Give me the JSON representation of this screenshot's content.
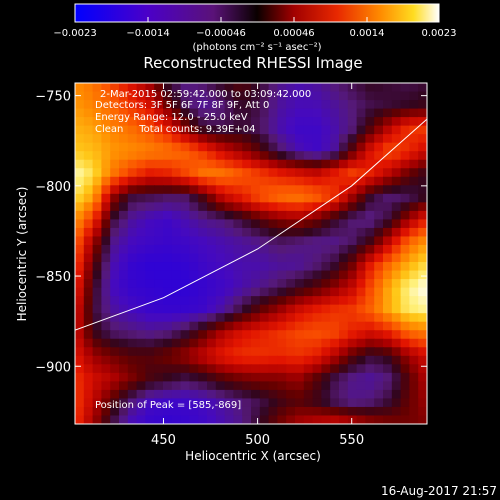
{
  "chart_data": {
    "type": "heatmap",
    "title": "Reconstructed RHESSI Image",
    "xlabel": "Heliocentric X (arcsec)",
    "ylabel": "Heliocentric Y (arcsec)",
    "xlim": [
      403,
      590
    ],
    "ylim": [
      -932,
      -743
    ],
    "x_ticks": [
      450,
      500,
      550
    ],
    "y_ticks": [
      -750,
      -800,
      -850,
      -900
    ],
    "colorbar": {
      "ticks": [
        "-0.0023",
        "-0.0014",
        "-0.00046",
        "0.00046",
        "0.0014",
        "0.0023"
      ],
      "units_label": "(photons cm⁻² s⁻¹ asec⁻²)",
      "range": [
        -0.0023,
        0.0023
      ]
    },
    "annotations": [
      "2-Mar-2015 02:59:42.000 to 03:09:42.000",
      "Detectors: 3F 5F 6F 7F 8F 9F, Att 0",
      "Energy Range: 12.0 - 25.0 keV",
      "Clean     Total counts: 9.39E+04"
    ],
    "peak_label": "Position of Peak = [585,-869]",
    "limb": [
      [
        403,
        -880
      ],
      [
        450,
        -862
      ],
      [
        500,
        -835
      ],
      [
        550,
        -800
      ],
      [
        590,
        -763
      ]
    ],
    "intensity_grid": {
      "x_range": [
        403,
        590
      ],
      "y_range": [
        -743,
        -932
      ],
      "rows": [
        [
          0.78,
          0.73,
          0.63,
          0.52,
          0.4,
          0.22,
          0.14,
          0.18,
          0.25,
          0.3,
          0.22,
          0.14,
          0.1,
          0.12,
          0.16,
          0.2,
          0.24,
          0.22,
          0.2,
          0.22
        ],
        [
          0.8,
          0.76,
          0.7,
          0.6,
          0.52,
          0.34,
          0.18,
          0.12,
          0.16,
          0.24,
          0.2,
          0.12,
          0.09,
          0.09,
          0.12,
          0.16,
          0.2,
          0.22,
          0.24,
          0.26
        ],
        [
          0.84,
          0.82,
          0.76,
          0.72,
          0.66,
          0.55,
          0.36,
          0.22,
          0.2,
          0.22,
          0.18,
          0.1,
          0.06,
          0.06,
          0.1,
          0.16,
          0.3,
          0.46,
          0.6,
          0.62
        ],
        [
          0.88,
          0.86,
          0.8,
          0.78,
          0.76,
          0.74,
          0.7,
          0.6,
          0.48,
          0.4,
          0.3,
          0.18,
          0.1,
          0.06,
          0.12,
          0.32,
          0.54,
          0.66,
          0.58,
          0.48
        ],
        [
          0.98,
          0.92,
          0.74,
          0.62,
          0.54,
          0.56,
          0.64,
          0.74,
          0.74,
          0.68,
          0.62,
          0.56,
          0.52,
          0.48,
          0.56,
          0.64,
          0.56,
          0.44,
          0.32,
          0.24
        ],
        [
          0.92,
          0.82,
          0.4,
          0.22,
          0.2,
          0.18,
          0.18,
          0.3,
          0.48,
          0.56,
          0.66,
          0.72,
          0.74,
          0.7,
          0.6,
          0.4,
          0.22,
          0.16,
          0.18,
          0.24
        ],
        [
          0.8,
          0.6,
          0.22,
          0.12,
          0.08,
          0.06,
          0.1,
          0.14,
          0.16,
          0.22,
          0.3,
          0.36,
          0.4,
          0.34,
          0.24,
          0.16,
          0.14,
          0.22,
          0.4,
          0.56
        ],
        [
          0.7,
          0.4,
          0.14,
          0.08,
          0.06,
          0.05,
          0.06,
          0.08,
          0.1,
          0.12,
          0.14,
          0.18,
          0.16,
          0.14,
          0.14,
          0.18,
          0.28,
          0.48,
          0.7,
          0.8
        ],
        [
          0.64,
          0.3,
          0.1,
          0.04,
          0.02,
          0.02,
          0.03,
          0.06,
          0.08,
          0.1,
          0.1,
          0.12,
          0.12,
          0.16,
          0.22,
          0.34,
          0.56,
          0.72,
          0.84,
          0.92
        ],
        [
          0.58,
          0.24,
          0.08,
          0.04,
          0.03,
          0.02,
          0.02,
          0.04,
          0.06,
          0.1,
          0.14,
          0.18,
          0.24,
          0.3,
          0.38,
          0.48,
          0.66,
          0.84,
          0.96,
          1.0
        ],
        [
          0.52,
          0.22,
          0.12,
          0.08,
          0.05,
          0.04,
          0.04,
          0.06,
          0.12,
          0.22,
          0.32,
          0.4,
          0.5,
          0.56,
          0.6,
          0.62,
          0.7,
          0.84,
          0.94,
          0.96
        ],
        [
          0.5,
          0.26,
          0.18,
          0.16,
          0.14,
          0.16,
          0.22,
          0.32,
          0.44,
          0.52,
          0.56,
          0.6,
          0.64,
          0.66,
          0.64,
          0.56,
          0.5,
          0.56,
          0.7,
          0.74
        ],
        [
          0.54,
          0.4,
          0.34,
          0.3,
          0.3,
          0.34,
          0.4,
          0.48,
          0.56,
          0.6,
          0.6,
          0.58,
          0.6,
          0.56,
          0.44,
          0.3,
          0.22,
          0.26,
          0.4,
          0.5
        ],
        [
          0.6,
          0.5,
          0.44,
          0.36,
          0.28,
          0.24,
          0.2,
          0.24,
          0.3,
          0.34,
          0.36,
          0.36,
          0.4,
          0.3,
          0.2,
          0.14,
          0.12,
          0.16,
          0.3,
          0.44
        ],
        [
          0.62,
          0.46,
          0.3,
          0.16,
          0.08,
          0.06,
          0.06,
          0.08,
          0.12,
          0.16,
          0.2,
          0.26,
          0.3,
          0.26,
          0.18,
          0.14,
          0.16,
          0.22,
          0.32,
          0.4
        ],
        [
          0.6,
          0.4,
          0.2,
          0.08,
          0.04,
          0.03,
          0.04,
          0.06,
          0.1,
          0.14,
          0.24,
          0.34,
          0.42,
          0.46,
          0.5,
          0.46,
          0.4,
          0.36,
          0.34,
          0.36
        ]
      ]
    }
  },
  "timestamp": "16-Aug-2017 21:57",
  "colors": {
    "background": "#000000",
    "foreground": "#ffffff"
  }
}
